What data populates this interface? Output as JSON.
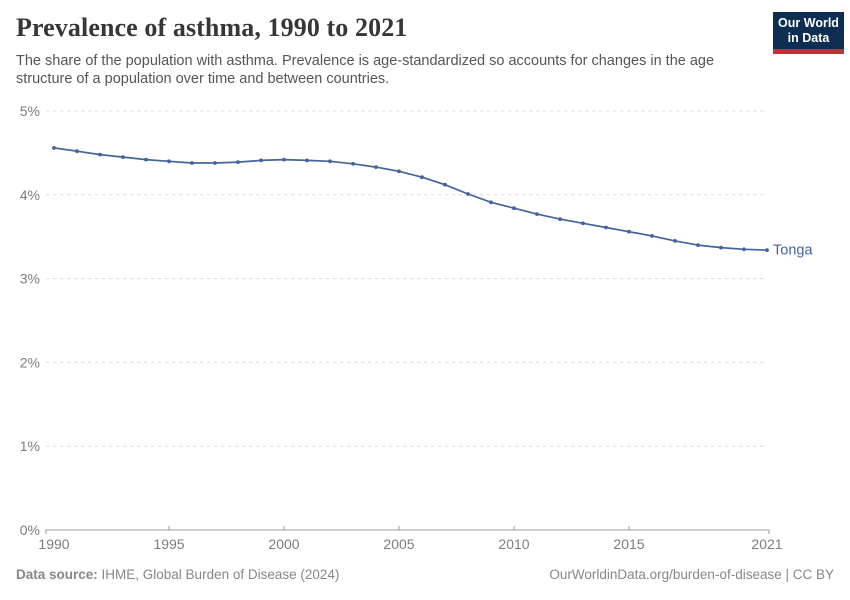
{
  "header": {
    "title": "Prevalence of asthma, 1990 to 2021",
    "subtitle_lines": [
      "The share of the population with asthma. Prevalence is age-standardized so accounts for changes in the age",
      "structure of a population over time and between countries."
    ],
    "logo": {
      "line1": "Our World",
      "line2": "in Data",
      "bg_color": "#0d2e52",
      "accent_color": "#c2303a"
    }
  },
  "chart_data": {
    "type": "line",
    "title": "Prevalence of asthma, 1990 to 2021",
    "xlabel": "",
    "ylabel": "",
    "xlim": [
      1990,
      2021
    ],
    "ylim": [
      0,
      5
    ],
    "grid": "horizontal-dashed",
    "grid_color": "#dcdcdc",
    "axis_color": "#9e9e9e",
    "tick_label_color": "#7d7d7d",
    "legend_position": "end-of-line",
    "x_ticks": [
      {
        "value": 1990,
        "label": "1990"
      },
      {
        "value": 1995,
        "label": "1995"
      },
      {
        "value": 2000,
        "label": "2000"
      },
      {
        "value": 2005,
        "label": "2005"
      },
      {
        "value": 2010,
        "label": "2010"
      },
      {
        "value": 2015,
        "label": "2015"
      },
      {
        "value": 2021,
        "label": "2021"
      }
    ],
    "y_ticks": [
      {
        "value": 0,
        "label": "0%"
      },
      {
        "value": 1,
        "label": "1%"
      },
      {
        "value": 2,
        "label": "2%"
      },
      {
        "value": 3,
        "label": "3%"
      },
      {
        "value": 4,
        "label": "4%"
      },
      {
        "value": 5,
        "label": "5%"
      }
    ],
    "series": [
      {
        "name": "Tonga",
        "color": "#44639e",
        "x": [
          1990,
          1991,
          1992,
          1993,
          1994,
          1995,
          1996,
          1997,
          1998,
          1999,
          2000,
          2001,
          2002,
          2003,
          2004,
          2005,
          2006,
          2007,
          2008,
          2009,
          2010,
          2011,
          2012,
          2013,
          2014,
          2015,
          2016,
          2017,
          2018,
          2019,
          2020,
          2021
        ],
        "values": [
          4.56,
          4.52,
          4.48,
          4.45,
          4.42,
          4.4,
          4.38,
          4.38,
          4.39,
          4.41,
          4.42,
          4.41,
          4.4,
          4.37,
          4.33,
          4.28,
          4.21,
          4.12,
          4.01,
          3.91,
          3.84,
          3.77,
          3.71,
          3.66,
          3.61,
          3.56,
          3.51,
          3.45,
          3.4,
          3.37,
          3.35,
          3.34
        ]
      }
    ]
  },
  "footer": {
    "datasource_label": "Data source:",
    "datasource_value": " IHME, Global Burden of Disease (2024)",
    "attribution": "OurWorldinData.org/burden-of-disease | CC BY"
  }
}
